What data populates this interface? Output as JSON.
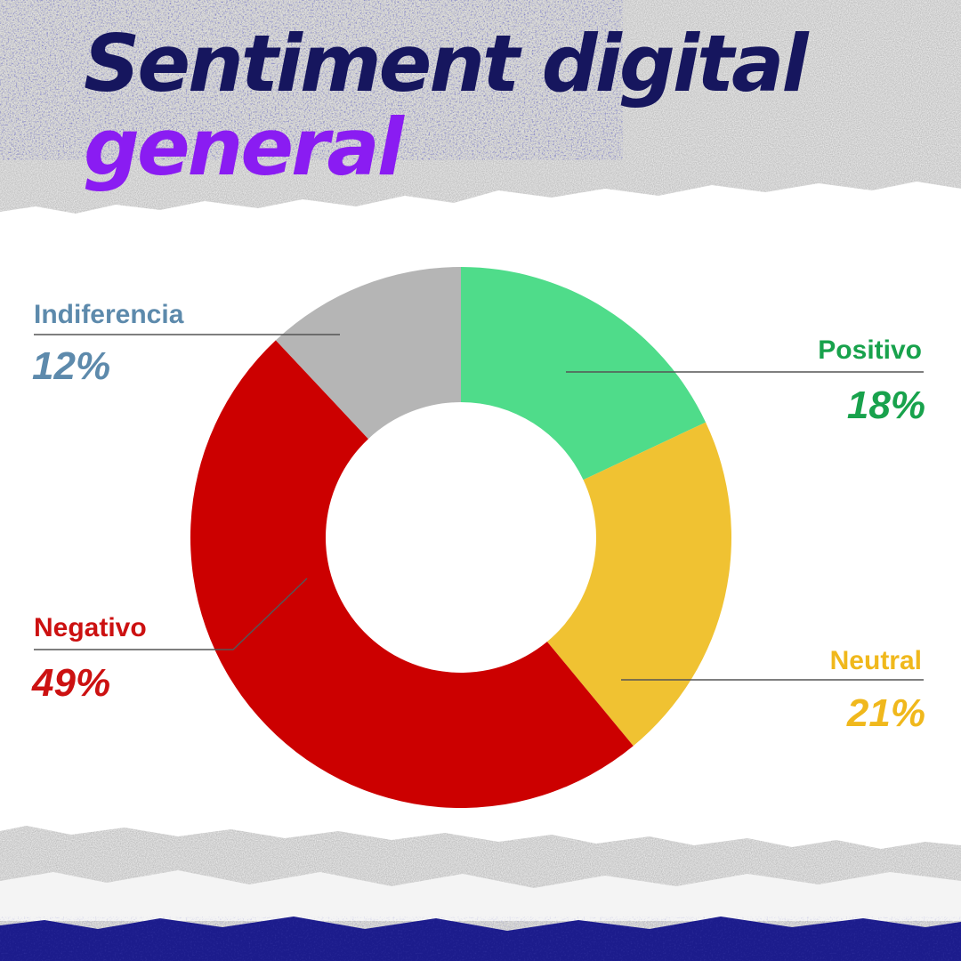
{
  "title": {
    "line1": "Sentiment digital",
    "line2": "general"
  },
  "colors": {
    "title_primary": "#16165e",
    "title_accent": "#8a1cf2",
    "band_dark": "#1c1c8c"
  },
  "chart_data": {
    "type": "pie",
    "variant": "donut",
    "title": "Sentiment digital general",
    "slices": [
      {
        "label": "Positivo",
        "value": 18,
        "display": "18%",
        "color": "#4fdc8a",
        "label_color": "#18a24c"
      },
      {
        "label": "Neutral",
        "value": 21,
        "display": "21%",
        "color": "#f0c232",
        "label_color": "#f0b81c"
      },
      {
        "label": "Negativo",
        "value": 49,
        "display": "49%",
        "color": "#cc0000",
        "label_color": "#cc1111"
      },
      {
        "label": "Indiferencia",
        "value": 12,
        "display": "12%",
        "color": "#b5b5b5",
        "label_color": "#5d8aac"
      }
    ],
    "start_angle": "12 o'clock",
    "direction": "clockwise"
  }
}
